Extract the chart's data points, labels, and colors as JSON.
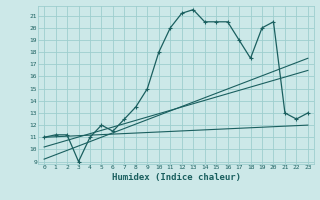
{
  "xlabel": "Humidex (Indice chaleur)",
  "bg_color": "#cce8e8",
  "line_color": "#1a5f5f",
  "grid_color": "#9ecece",
  "xlim": [
    -0.5,
    23.5
  ],
  "ylim": [
    8.8,
    21.8
  ],
  "yticks": [
    9,
    10,
    11,
    12,
    13,
    14,
    15,
    16,
    17,
    18,
    19,
    20,
    21
  ],
  "xticks": [
    0,
    1,
    2,
    3,
    4,
    5,
    6,
    7,
    8,
    9,
    10,
    11,
    12,
    13,
    14,
    15,
    16,
    17,
    18,
    19,
    20,
    21,
    22,
    23
  ],
  "series1_x": [
    0,
    1,
    2,
    3,
    4,
    5,
    6,
    7,
    8,
    9,
    10,
    11,
    12,
    13,
    14,
    15,
    16,
    17,
    18,
    19,
    20,
    21,
    22,
    23
  ],
  "series1_y": [
    11,
    11.2,
    11.2,
    9.0,
    11.0,
    12.0,
    11.5,
    12.5,
    13.5,
    15.0,
    18.0,
    20.0,
    21.2,
    21.5,
    20.5,
    20.5,
    20.5,
    19.0,
    17.5,
    20.0,
    20.5,
    13.0,
    12.5,
    13.0
  ],
  "series2_x": [
    0,
    23
  ],
  "series2_y": [
    9.2,
    17.5
  ],
  "series3_x": [
    0,
    23
  ],
  "series3_y": [
    10.2,
    16.5
  ],
  "series4_x": [
    0,
    23
  ],
  "series4_y": [
    11.0,
    12.0
  ]
}
